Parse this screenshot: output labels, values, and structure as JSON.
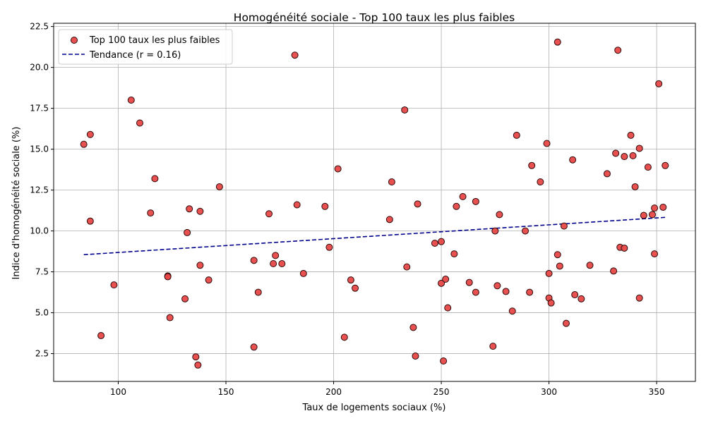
{
  "chart_data": {
    "type": "scatter",
    "title": "Homogénéité sociale - Top 100 taux les plus faibles",
    "xlabel": "Taux de logements sociaux (%)",
    "ylabel": "Indice d'homogénéité sociale (%)",
    "xlim": [
      70,
      368
    ],
    "ylim": [
      0.8,
      22.7
    ],
    "xticks": [
      100,
      150,
      200,
      250,
      300,
      350
    ],
    "yticks": [
      2.5,
      5.0,
      7.5,
      10.0,
      12.5,
      15.0,
      17.5,
      20.0,
      22.5
    ],
    "xtick_labels": [
      "100",
      "150",
      "200",
      "250",
      "300",
      "350"
    ],
    "ytick_labels": [
      "2.5",
      "5.0",
      "7.5",
      "10.0",
      "12.5",
      "15.0",
      "17.5",
      "20.0",
      "22.5"
    ],
    "grid": true,
    "legend_position": "top-left",
    "series": [
      {
        "name": "Top 100 taux les plus faibles",
        "kind": "scatter",
        "color": "#e84747",
        "edge_color": "#2b0a0a",
        "points": [
          [
            84,
            15.3
          ],
          [
            87,
            15.9
          ],
          [
            87,
            10.6
          ],
          [
            92,
            3.6
          ],
          [
            98,
            6.7
          ],
          [
            106,
            18.0
          ],
          [
            110,
            16.6
          ],
          [
            115,
            11.1
          ],
          [
            117,
            13.2
          ],
          [
            123,
            7.25
          ],
          [
            123,
            7.2
          ],
          [
            124,
            4.7
          ],
          [
            131,
            5.85
          ],
          [
            132,
            9.9
          ],
          [
            133,
            11.35
          ],
          [
            136,
            2.3
          ],
          [
            137,
            1.8
          ],
          [
            138,
            7.9
          ],
          [
            138,
            11.2
          ],
          [
            142,
            7.0
          ],
          [
            147,
            12.7
          ],
          [
            163,
            8.2
          ],
          [
            163,
            2.9
          ],
          [
            165,
            6.25
          ],
          [
            170,
            11.05
          ],
          [
            172,
            8.0
          ],
          [
            173,
            8.5
          ],
          [
            176,
            8.0
          ],
          [
            182,
            20.75
          ],
          [
            183,
            11.6
          ],
          [
            186,
            7.4
          ],
          [
            196,
            11.5
          ],
          [
            198,
            9.0
          ],
          [
            202,
            13.8
          ],
          [
            205,
            3.5
          ],
          [
            208,
            7.0
          ],
          [
            210,
            6.5
          ],
          [
            226,
            10.7
          ],
          [
            227,
            13.0
          ],
          [
            233,
            17.4
          ],
          [
            234,
            7.8
          ],
          [
            237,
            4.1
          ],
          [
            238,
            2.35
          ],
          [
            239,
            11.65
          ],
          [
            247,
            9.25
          ],
          [
            250,
            6.8
          ],
          [
            250,
            9.35
          ],
          [
            251,
            2.05
          ],
          [
            252,
            7.05
          ],
          [
            253,
            5.3
          ],
          [
            256,
            8.6
          ],
          [
            257,
            11.5
          ],
          [
            260,
            12.1
          ],
          [
            263,
            6.85
          ],
          [
            266,
            11.8
          ],
          [
            266,
            6.25
          ],
          [
            274,
            2.95
          ],
          [
            275,
            10.0
          ],
          [
            276,
            6.65
          ],
          [
            277,
            11.0
          ],
          [
            280,
            6.3
          ],
          [
            283,
            5.1
          ],
          [
            285,
            15.85
          ],
          [
            289,
            10.0
          ],
          [
            291,
            6.25
          ],
          [
            292,
            14.0
          ],
          [
            296,
            13.0
          ],
          [
            299,
            15.35
          ],
          [
            300,
            7.4
          ],
          [
            300,
            5.9
          ],
          [
            301,
            5.6
          ],
          [
            304,
            21.55
          ],
          [
            304,
            8.55
          ],
          [
            305,
            7.85
          ],
          [
            307,
            10.3
          ],
          [
            308,
            4.35
          ],
          [
            311,
            14.35
          ],
          [
            312,
            6.1
          ],
          [
            315,
            5.85
          ],
          [
            319,
            7.9
          ],
          [
            327,
            13.5
          ],
          [
            330,
            7.55
          ],
          [
            331,
            14.75
          ],
          [
            332,
            21.05
          ],
          [
            333,
            9.0
          ],
          [
            335,
            8.95
          ],
          [
            335,
            14.55
          ],
          [
            338,
            15.85
          ],
          [
            339,
            14.6
          ],
          [
            340,
            12.7
          ],
          [
            342,
            15.05
          ],
          [
            342,
            5.9
          ],
          [
            344,
            10.95
          ],
          [
            346,
            13.9
          ],
          [
            348,
            11.0
          ],
          [
            349,
            8.6
          ],
          [
            349,
            11.4
          ],
          [
            351,
            19.0
          ],
          [
            353,
            11.45
          ],
          [
            354,
            14.0
          ]
        ]
      },
      {
        "name": "Tendance (r = 0.16)",
        "kind": "line",
        "style": "dashed",
        "color": "#00008b",
        "points": [
          [
            84,
            8.55
          ],
          [
            354,
            10.83
          ]
        ]
      }
    ]
  }
}
